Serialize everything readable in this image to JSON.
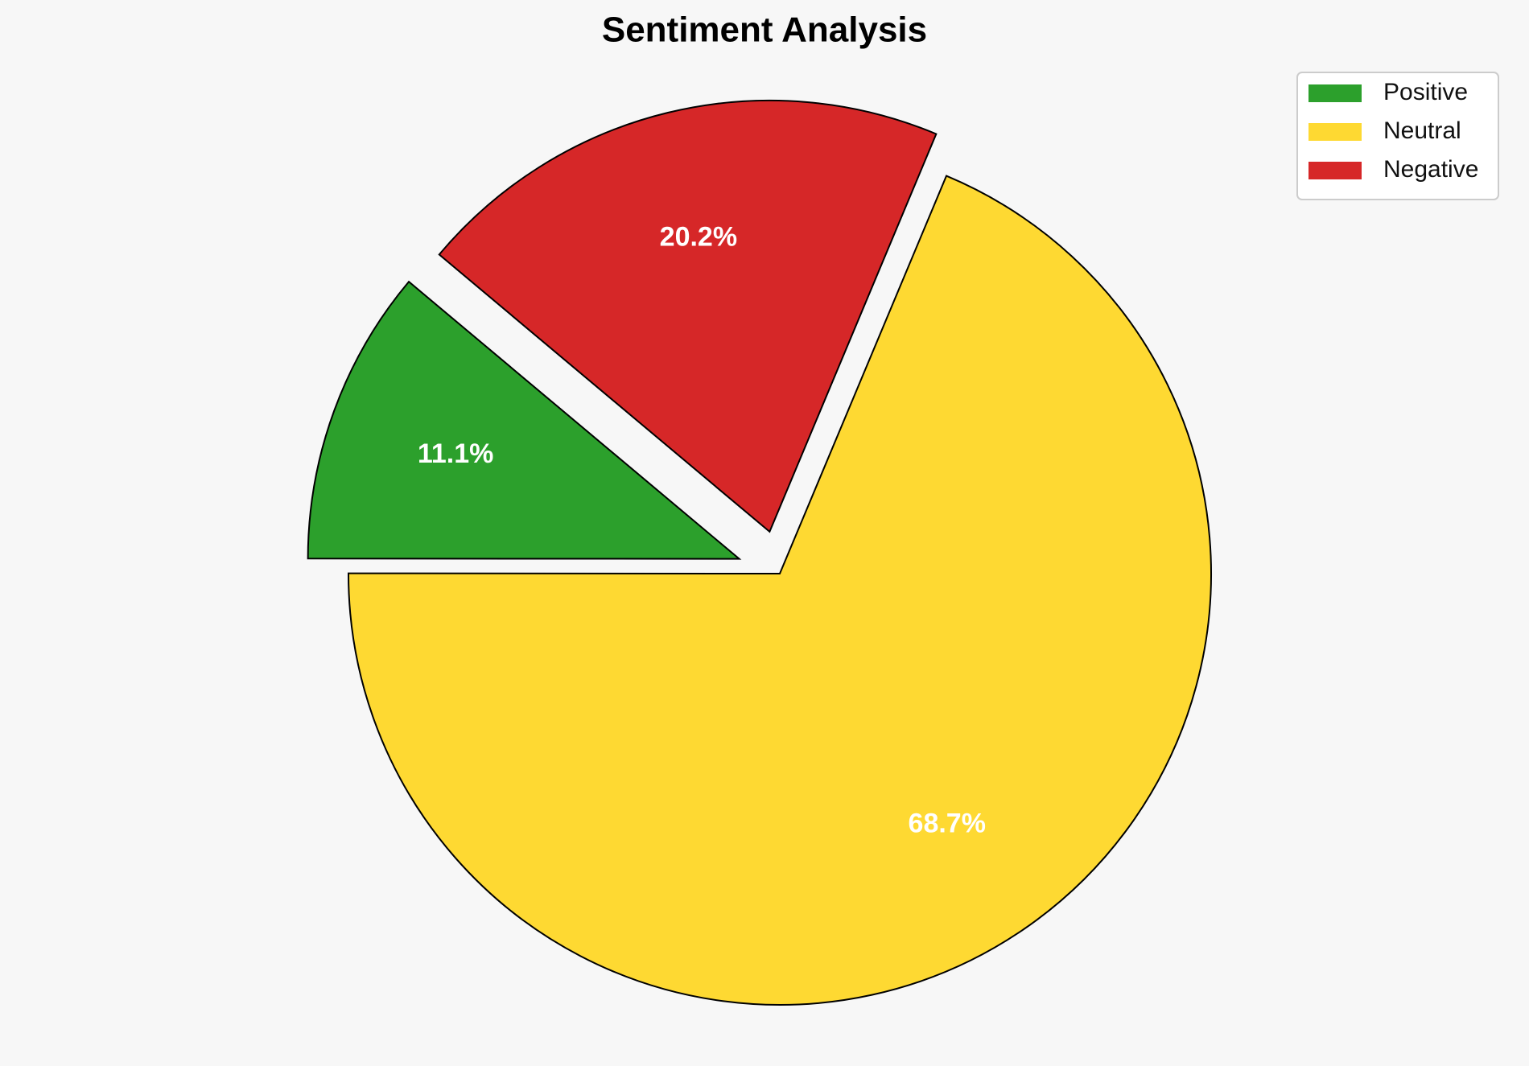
{
  "chart_data": {
    "type": "pie",
    "title": "Sentiment Analysis",
    "categories": [
      "Positive",
      "Neutral",
      "Negative"
    ],
    "values": [
      11.1,
      68.7,
      20.2
    ],
    "value_labels": [
      "11.1%",
      "68.7%",
      "20.2%"
    ],
    "colors": [
      "#2ca02c",
      "#fed932",
      "#d62728"
    ],
    "explode": [
      0.1,
      0,
      0.1
    ],
    "startangle": 140,
    "legend": "upper right"
  }
}
